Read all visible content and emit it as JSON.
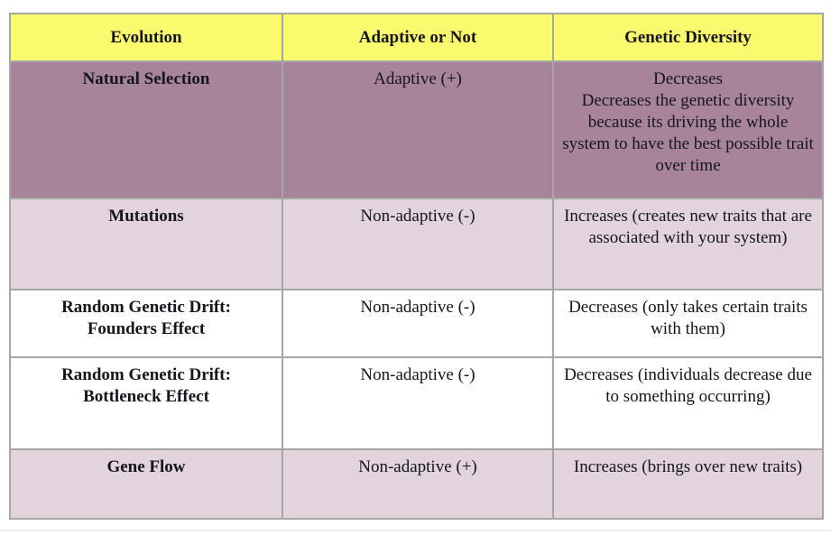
{
  "colors": {
    "page_bg": "#ffffff",
    "header_bg": "#fafa6e",
    "dark_row_bg": "#a8849b",
    "light_row_bg": "#e2d3dc",
    "white_row_bg": "#ffffff",
    "border_outer": "#8c8c8c",
    "border_inner": "#a6a6a6",
    "text": "#15151d",
    "bottom_rule": "#eef0f3"
  },
  "table": {
    "headers": [
      "Evolution",
      "Adaptive or Not",
      "Genetic Diversity"
    ],
    "rows": [
      {
        "evolution": "Natural Selection",
        "adaptive": "Adaptive (+)",
        "genetic_diversity": "Decreases\nDecreases the genetic diversity because its driving the whole system to have the best possible trait over time",
        "shade": "dark"
      },
      {
        "evolution": "Mutations",
        "adaptive": "Non-adaptive (-)",
        "genetic_diversity": "Increases (creates new traits that are associated with your system)",
        "shade": "light"
      },
      {
        "evolution": "Random Genetic Drift:\nFounders Effect",
        "adaptive": "Non-adaptive (-)",
        "genetic_diversity": "Decreases (only takes certain traits with them)",
        "shade": "white"
      },
      {
        "evolution": "Random Genetic Drift:\nBottleneck Effect",
        "adaptive": "Non-adaptive (-)",
        "genetic_diversity": "Decreases (individuals decrease due to something occurring)",
        "shade": "white"
      },
      {
        "evolution": "Gene Flow",
        "adaptive": "Non-adaptive (+)",
        "genetic_diversity": "Increases (brings over new traits)",
        "shade": "light"
      }
    ]
  }
}
